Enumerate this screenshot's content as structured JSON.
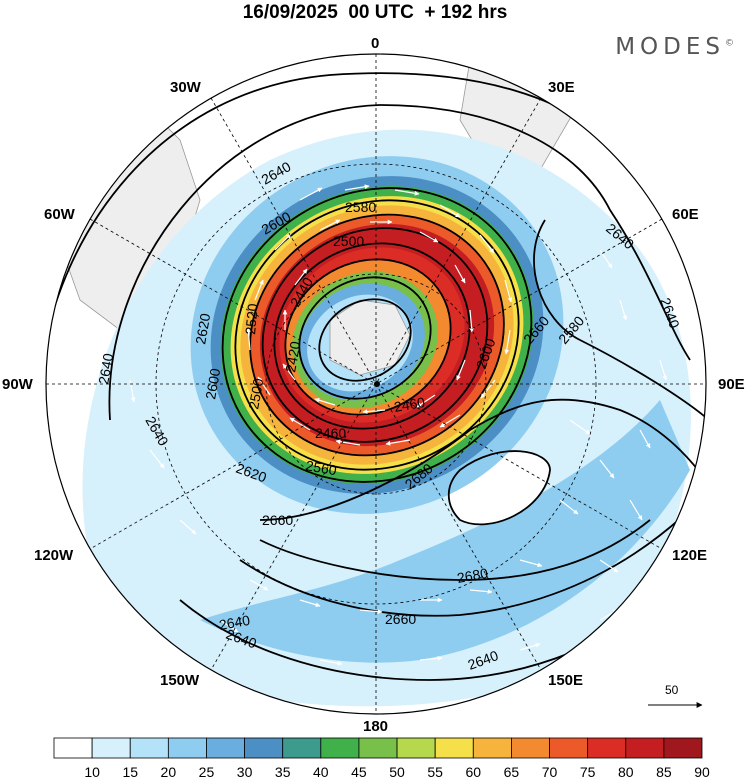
{
  "title": {
    "date": "16/09/2025",
    "time": "00 UTC",
    "lead": "+ 192 hrs"
  },
  "brand": "MODES",
  "lon_labels": {
    "n0": "0",
    "e30": "30E",
    "e60": "60E",
    "e90": "90E",
    "e120": "120E",
    "e150": "150E",
    "s180": "180",
    "w150": "150W",
    "w120": "120W",
    "w90": "90W",
    "w60": "60W",
    "w30": "30W"
  },
  "contour_labels": [
    "2640",
    "2640",
    "2580",
    "2600",
    "2500",
    "2440",
    "2620",
    "2520",
    "2420",
    "2640",
    "2600",
    "2500",
    "2600",
    "2580",
    "2640",
    "2640",
    "2640",
    "2660",
    "2460",
    "2460",
    "2560",
    "2620",
    "2660",
    "2680",
    "2680",
    "2660",
    "2640",
    "2640"
  ],
  "arrow_scale": {
    "label": "50"
  },
  "colorbar": {
    "labels": [
      "10",
      "15",
      "20",
      "25",
      "30",
      "35",
      "40",
      "45",
      "50",
      "55",
      "60",
      "65",
      "70",
      "75",
      "80",
      "85",
      "90"
    ],
    "colors": [
      "#ffffff",
      "#d6f0fc",
      "#b4e2f8",
      "#8ecdf0",
      "#6aaee0",
      "#4c8fc4",
      "#3c9b8c",
      "#3fb04a",
      "#78c04a",
      "#b5d84c",
      "#f5e04a",
      "#f6b43c",
      "#f48a30",
      "#ec5a2a",
      "#dc2c26",
      "#c41e22",
      "#a0181e"
    ]
  },
  "chart_data": {
    "type": "polar-stereographic map",
    "projection": "south polar stereographic",
    "field_contour": "geopotential height (dam)",
    "field_shaded": "wind speed",
    "valid": "16/09/2025 00 UTC + 192 hrs",
    "contour_levels": [
      2420,
      2440,
      2460,
      2500,
      2520,
      2560,
      2580,
      2600,
      2620,
      2640,
      2660,
      2680
    ],
    "shading_levels": [
      10,
      15,
      20,
      25,
      30,
      35,
      40,
      45,
      50,
      55,
      60,
      65,
      70,
      75,
      80,
      85,
      90
    ],
    "reference_vector": 50
  }
}
